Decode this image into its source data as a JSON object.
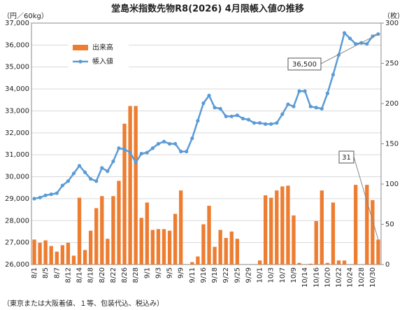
{
  "chart_data": {
    "type": "bar-line",
    "title": "堂島米指数先物R8(2026) 4月限帳入値の推移",
    "y_axis_label": "（円／60kg）",
    "y2_axis_label": "（枚）",
    "footnote": "（東京または大阪着値、１等、包装代込、税込み）",
    "categories": [
      "8/1",
      null,
      "8/5",
      null,
      "8/7",
      null,
      "8/12",
      null,
      "8/14",
      null,
      "8/18",
      null,
      "8/20",
      null,
      "8/22",
      null,
      "8/26",
      null,
      "8/28",
      null,
      "9/1",
      null,
      "9/3",
      null,
      "9/5",
      null,
      "9/9",
      null,
      "9/11",
      null,
      "9/16",
      null,
      "9/18",
      null,
      "9/22",
      null,
      "9/25",
      null,
      "9/29",
      null,
      "10/1",
      null,
      "10/3",
      null,
      "10/7",
      null,
      "10/9",
      null,
      "10/14",
      null,
      "10/16",
      null,
      "10/20",
      null,
      "10/22",
      null,
      "10/24",
      null,
      "10/28",
      null,
      "10/30",
      null
    ],
    "series": [
      {
        "name": "出来高",
        "type": "bar",
        "axis": "y2",
        "color": "#ed7d31",
        "values": [
          31,
          27,
          30,
          23,
          16,
          24,
          27,
          11,
          83,
          18,
          42,
          70,
          85,
          32,
          85,
          104,
          175,
          197,
          197,
          58,
          77,
          43,
          44,
          44,
          42,
          63,
          92,
          0,
          3,
          10,
          50,
          73,
          22,
          43,
          33,
          41,
          32,
          0,
          0,
          0,
          5,
          86,
          83,
          92,
          97,
          98,
          61,
          2,
          0,
          1,
          54,
          92,
          2,
          77,
          5,
          5,
          0,
          99,
          0,
          99,
          80,
          31
        ],
        "value_labels": [
          null,
          null,
          null,
          null,
          null,
          null,
          null,
          null,
          null,
          null,
          null,
          null,
          null,
          null,
          null,
          null,
          null,
          null,
          null,
          null,
          null,
          null,
          null,
          null,
          null,
          null,
          null,
          null,
          null,
          null,
          null,
          null,
          null,
          null,
          null,
          null,
          null,
          null,
          null,
          null,
          null,
          null,
          null,
          null,
          null,
          null,
          null,
          null,
          null,
          null,
          null,
          null,
          null,
          null,
          null,
          null,
          null,
          null,
          null,
          null,
          null,
          "31"
        ]
      },
      {
        "name": "帳入値",
        "type": "line",
        "axis": "y",
        "color": "#5b9bd5",
        "values": [
          29000,
          29050,
          29150,
          29200,
          29250,
          29600,
          29800,
          30150,
          30500,
          30200,
          29900,
          29800,
          30400,
          30250,
          30700,
          31300,
          31250,
          31100,
          30650,
          31050,
          31100,
          31300,
          31500,
          31600,
          31500,
          31500,
          31150,
          31150,
          31750,
          32550,
          33350,
          33700,
          33150,
          33100,
          32750,
          32750,
          32800,
          32650,
          32600,
          32450,
          32450,
          32400,
          32400,
          32450,
          32850,
          33300,
          33200,
          33900,
          33900,
          33200,
          33150,
          33100,
          33800,
          34650,
          35550,
          36550,
          36300,
          36050,
          36100,
          36050,
          36400,
          36500
        ],
        "value_labels": [
          null,
          null,
          null,
          null,
          null,
          null,
          null,
          null,
          null,
          null,
          null,
          null,
          null,
          null,
          null,
          null,
          null,
          null,
          null,
          null,
          null,
          null,
          null,
          null,
          null,
          null,
          null,
          null,
          null,
          null,
          null,
          null,
          null,
          null,
          null,
          null,
          null,
          null,
          null,
          null,
          null,
          null,
          null,
          null,
          null,
          null,
          null,
          null,
          null,
          null,
          null,
          null,
          null,
          null,
          null,
          null,
          null,
          null,
          null,
          null,
          null,
          "36,500"
        ]
      }
    ],
    "ylim": [
      26000,
      37000
    ],
    "yticks": [
      {
        "value": 26000,
        "label": "26,000"
      },
      {
        "value": 27000,
        "label": "27,000"
      },
      {
        "value": 28000,
        "label": "28,000"
      },
      {
        "value": 29000,
        "label": "29,000"
      },
      {
        "value": 30000,
        "label": "30,000"
      },
      {
        "value": 31000,
        "label": "31,000"
      },
      {
        "value": 32000,
        "label": "32,000"
      },
      {
        "value": 33000,
        "label": "33,000"
      },
      {
        "value": 34000,
        "label": "34,000"
      },
      {
        "value": 35000,
        "label": "35,000"
      },
      {
        "value": 36000,
        "label": "36,000"
      },
      {
        "value": 37000,
        "label": "37,000"
      }
    ],
    "y2lim": [
      0,
      300
    ],
    "y2ticks": [
      0,
      50,
      100,
      150,
      200,
      250,
      300
    ],
    "grid": true,
    "legend": "upper left"
  }
}
